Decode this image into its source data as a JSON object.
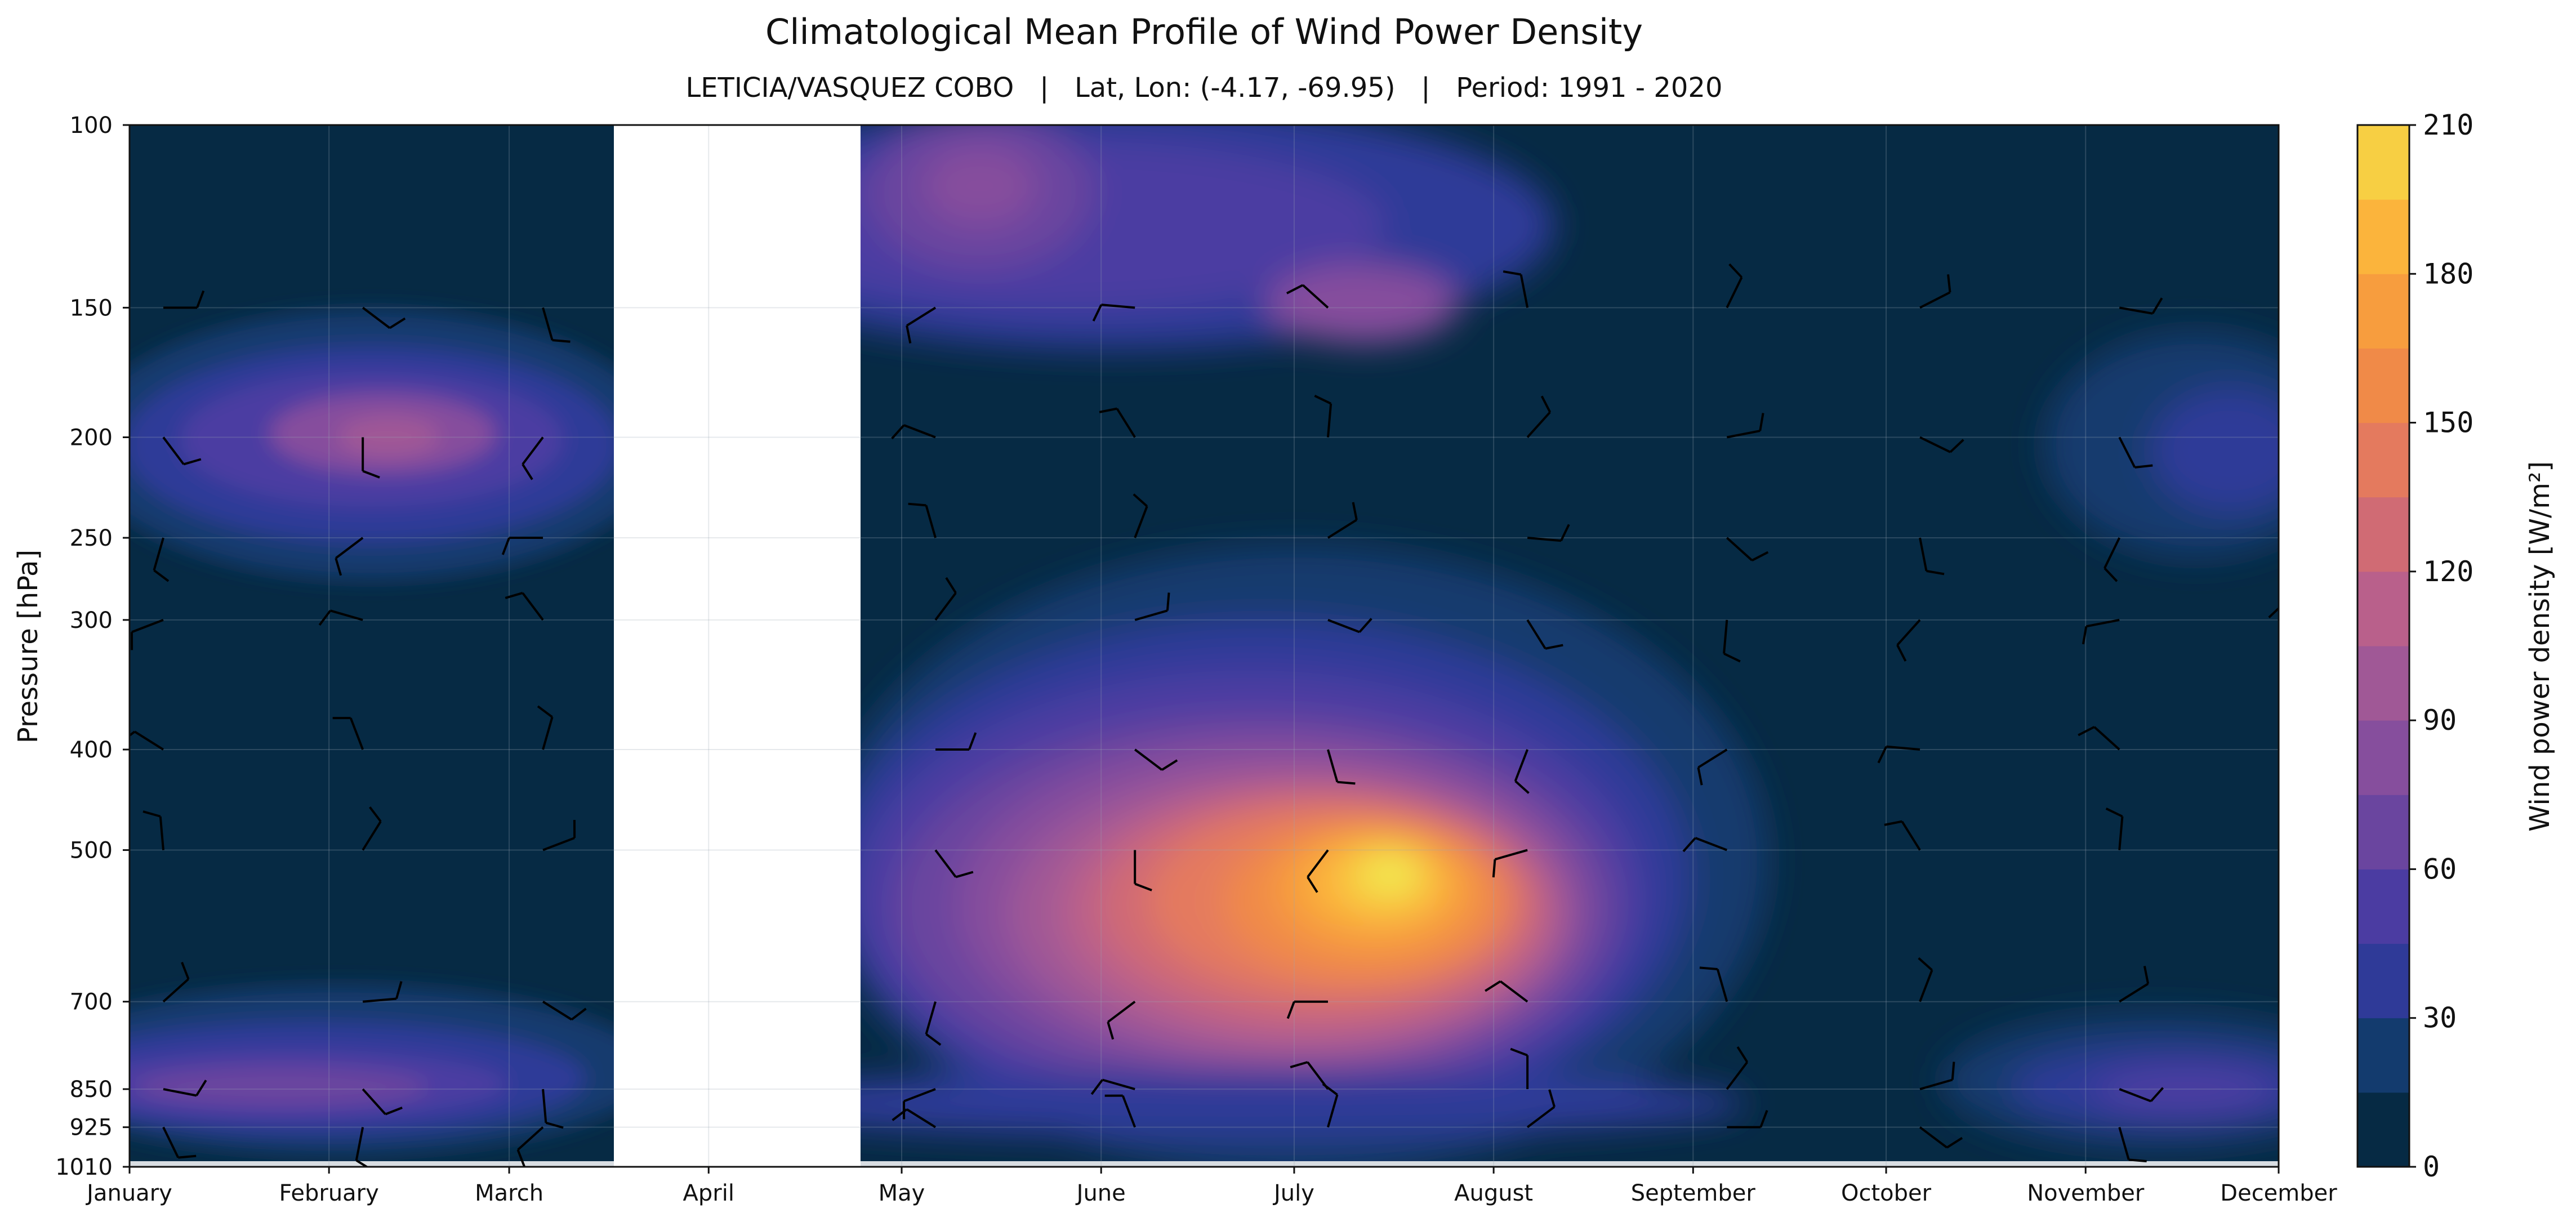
{
  "chart_data": {
    "type": "heatmap",
    "title": "Climatological Mean Profile of Wind Power Density",
    "subtitle": "LETICIA/VASQUEZ COBO   |   Lat, Lon: (-4.17, -69.95)   |   Period: 1991 - 2020",
    "ylabel": "Pressure [hPa]",
    "colorbar_label": "Wind power density [W/m²]",
    "x_ticks": [
      "January",
      "February",
      "March",
      "April",
      "May",
      "June",
      "July",
      "August",
      "September",
      "October",
      "November",
      "December"
    ],
    "y_ticks": [
      100,
      150,
      200,
      250,
      300,
      400,
      500,
      700,
      850,
      925,
      1010
    ],
    "y_scale": "log",
    "y_inverted": true,
    "colorbar_ticks": [
      0,
      30,
      60,
      90,
      120,
      150,
      180,
      210
    ],
    "colorbar_levels": [
      0,
      15,
      30,
      45,
      60,
      75,
      90,
      105,
      120,
      135,
      150,
      165,
      180,
      195,
      210
    ],
    "colorbar_colors": [
      "#062a44",
      "#133b6e",
      "#2f3a98",
      "#4b3ca2",
      "#6a459f",
      "#864e9d",
      "#a05896",
      "#b9608b",
      "#d06b74",
      "#e47a5e",
      "#f08a48",
      "#f79d3e",
      "#fbb43c",
      "#f7cf43",
      "#f0ec52"
    ],
    "missing_range": [
      "March-end",
      "May"
    ],
    "grid": true,
    "wind_barbs": true
  }
}
